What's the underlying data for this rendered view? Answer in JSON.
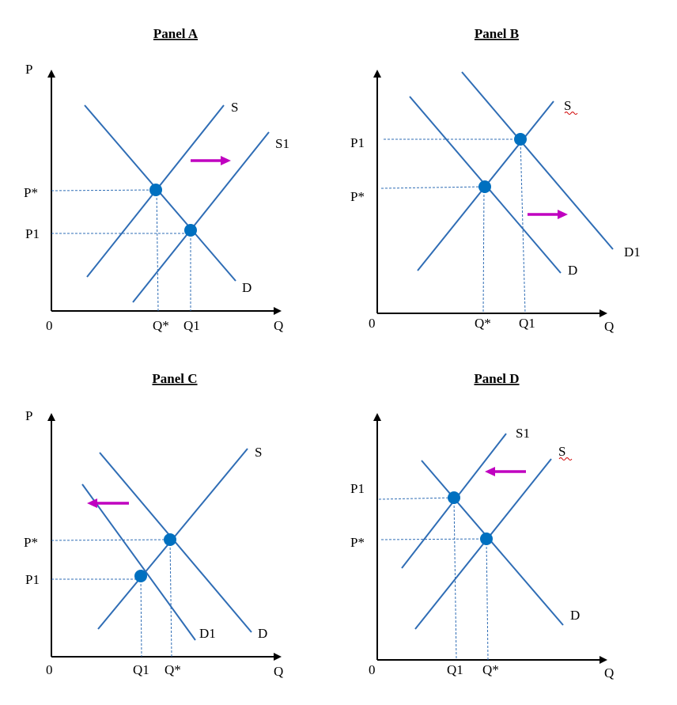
{
  "panels": [
    {
      "title": "Panel A",
      "labels": {
        "p_axis": "P",
        "q_axis": "Q",
        "origin": "0",
        "p_star": "P*",
        "p1": "P1",
        "q_star": "Q*",
        "q1": "Q1"
      },
      "curves": [
        {
          "label": "S"
        },
        {
          "label": "S1"
        },
        {
          "label": "D"
        }
      ],
      "shift": "right"
    },
    {
      "title": "Panel B",
      "labels": {
        "p_axis": "",
        "q_axis": "Q",
        "origin": "0",
        "p_star": "P*",
        "p1": "P1",
        "q_star": "Q*",
        "q1": "Q1"
      },
      "curves": [
        {
          "label": "S"
        },
        {
          "label": "D"
        },
        {
          "label": "D1"
        }
      ],
      "shift": "right"
    },
    {
      "title": "Panel C",
      "labels": {
        "p_axis": "P",
        "q_axis": "Q",
        "origin": "0",
        "p_star": "P*",
        "p1": "P1",
        "q_star": "Q*",
        "q1": "Q1"
      },
      "curves": [
        {
          "label": "S"
        },
        {
          "label": "D"
        },
        {
          "label": "D1"
        }
      ],
      "shift": "left"
    },
    {
      "title": "Panel D",
      "labels": {
        "p_axis": "",
        "q_axis": "Q",
        "origin": "0",
        "p_star": "P*",
        "p1": "P1",
        "q_star": "Q*",
        "q1": "Q1"
      },
      "curves": [
        {
          "label": "S1"
        },
        {
          "label": "S"
        },
        {
          "label": "D"
        }
      ],
      "shift": "left"
    }
  ],
  "colors": {
    "curve": "#2f6db5",
    "point": "#0070c0",
    "arrow": "#c000c0"
  }
}
